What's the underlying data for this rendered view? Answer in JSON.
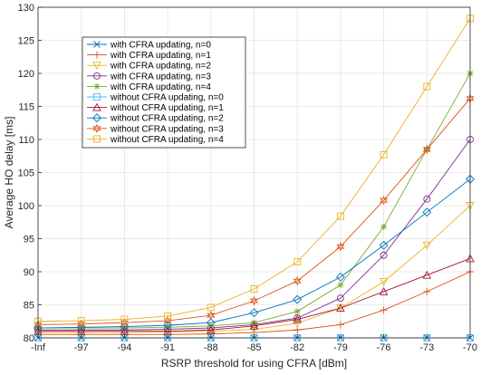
{
  "chart_data": {
    "type": "line",
    "title": "",
    "xlabel": "RSRP threshold for using CFRA [dBm]",
    "ylabel": "Average HO delay [ms]",
    "categories": [
      "-Inf",
      "-97",
      "-94",
      "-91",
      "-88",
      "-85",
      "-82",
      "-79",
      "-76",
      "-73",
      "-70"
    ],
    "ylim": [
      80,
      130
    ],
    "yticks": [
      80,
      85,
      90,
      95,
      100,
      105,
      110,
      115,
      120,
      125,
      130
    ],
    "grid": true,
    "legend_position": "top-left",
    "series": [
      {
        "name": "with CFRA updating, n=0",
        "color": "#0072BD",
        "marker": "x",
        "values": [
          80.0,
          80.0,
          80.0,
          80.0,
          80.0,
          80.0,
          80.0,
          80.0,
          80.0,
          80.0,
          80.0
        ]
      },
      {
        "name": "with CFRA updating, n=1",
        "color": "#D95319",
        "marker": "plus",
        "values": [
          80.5,
          80.5,
          80.5,
          80.5,
          80.6,
          80.8,
          81.2,
          82.0,
          84.2,
          87.0,
          90.0
        ]
      },
      {
        "name": "with CFRA updating, n=2",
        "color": "#EDB120",
        "marker": "triangle-down",
        "values": [
          80.8,
          80.8,
          80.8,
          80.9,
          81.0,
          81.3,
          82.2,
          84.5,
          88.5,
          94.0,
          100.0
        ]
      },
      {
        "name": "with CFRA updating, n=3",
        "color": "#7E2F8E",
        "marker": "circle",
        "values": [
          81.2,
          81.2,
          81.2,
          81.3,
          81.5,
          82.0,
          83.0,
          86.0,
          92.5,
          101.0,
          110.0
        ]
      },
      {
        "name": "with CFRA updating, n=4",
        "color": "#77AC30",
        "marker": "asterisk",
        "values": [
          81.5,
          81.5,
          81.5,
          81.6,
          81.8,
          82.3,
          84.0,
          88.0,
          96.8,
          108.5,
          120.0
        ]
      },
      {
        "name": "without CFRA updating, n=0",
        "color": "#4DBEEE",
        "marker": "square",
        "values": [
          80.0,
          80.0,
          80.0,
          80.0,
          80.0,
          80.0,
          80.0,
          80.0,
          80.0,
          80.0,
          80.0
        ]
      },
      {
        "name": "without CFRA updating, n=1",
        "color": "#A2142F",
        "marker": "triangle-up",
        "values": [
          81.0,
          81.0,
          81.0,
          81.0,
          81.2,
          81.8,
          82.8,
          84.5,
          87.0,
          89.5,
          92.0
        ]
      },
      {
        "name": "without CFRA updating, n=2",
        "color": "#0072BD",
        "marker": "diamond",
        "values": [
          81.5,
          81.6,
          81.7,
          81.9,
          82.3,
          83.8,
          85.8,
          89.2,
          94.0,
          99.0,
          104.0
        ]
      },
      {
        "name": "without CFRA updating, n=3",
        "color": "#D95319",
        "marker": "hexagram",
        "values": [
          82.0,
          82.1,
          82.3,
          82.6,
          83.4,
          85.6,
          88.6,
          93.8,
          100.8,
          108.5,
          116.2
        ]
      },
      {
        "name": "without CFRA updating, n=4",
        "color": "#EDB120",
        "marker": "square",
        "values": [
          82.5,
          82.6,
          82.8,
          83.3,
          84.6,
          87.4,
          91.5,
          98.4,
          107.7,
          118.0,
          128.3
        ]
      }
    ]
  }
}
